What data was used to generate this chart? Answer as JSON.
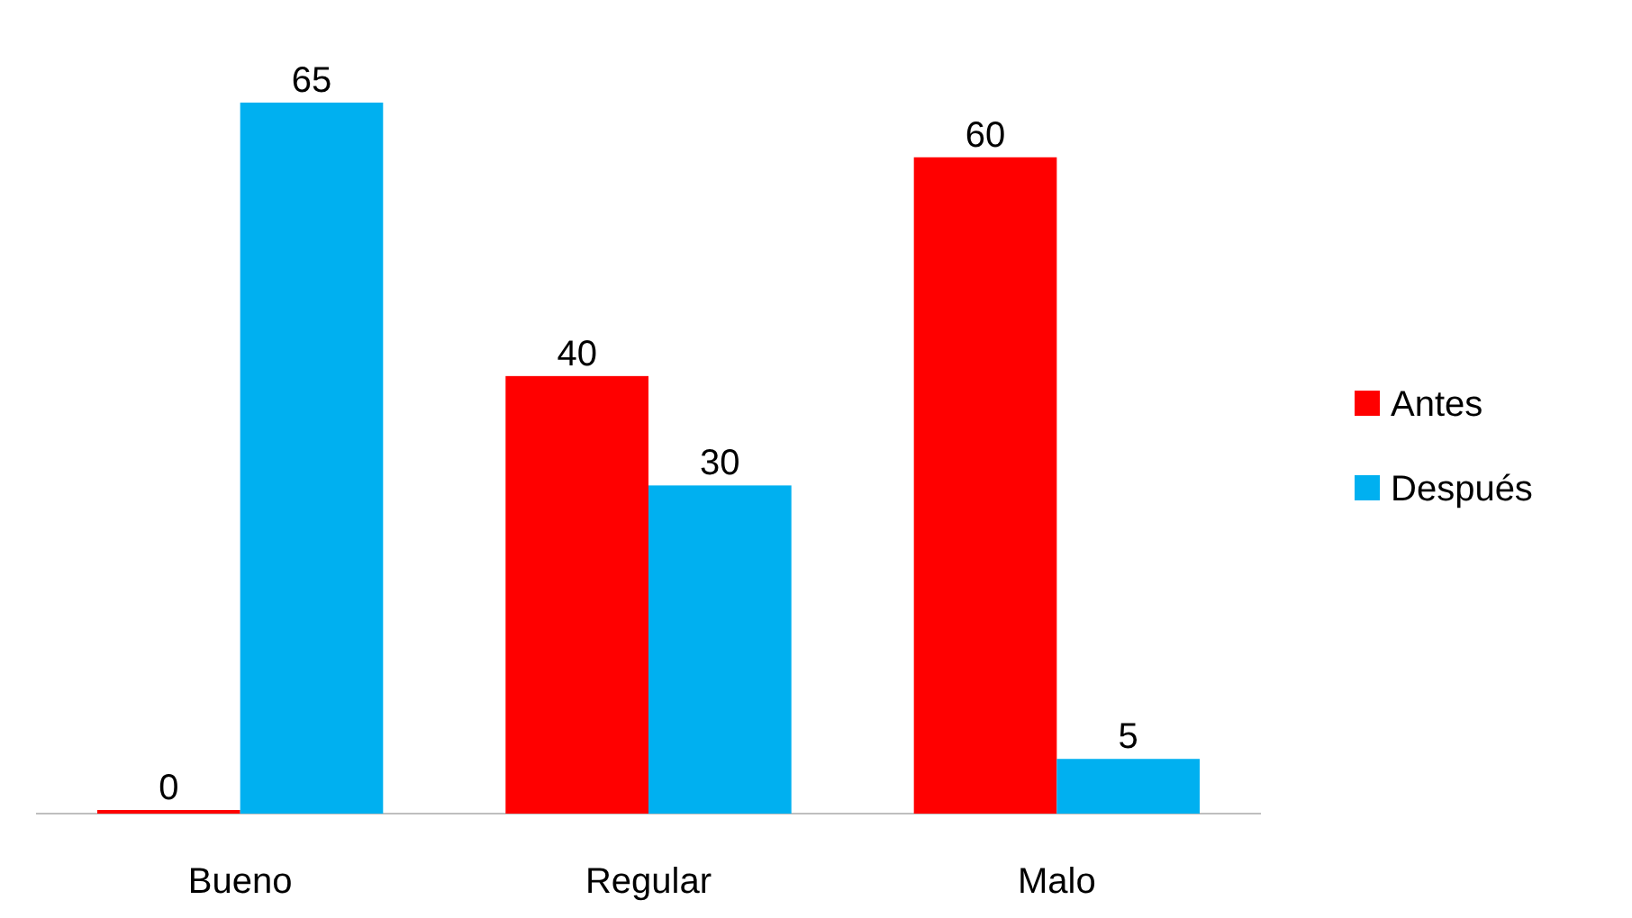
{
  "chart_data": {
    "type": "bar",
    "categories": [
      "Bueno",
      "Regular",
      "Malo"
    ],
    "series": [
      {
        "name": "Antes",
        "color": "#ff0000",
        "values": [
          0,
          40,
          60
        ]
      },
      {
        "name": "Después",
        "color": "#00b0f0",
        "values": [
          65,
          30,
          5
        ]
      }
    ],
    "data_labels": true,
    "legend": "right"
  }
}
